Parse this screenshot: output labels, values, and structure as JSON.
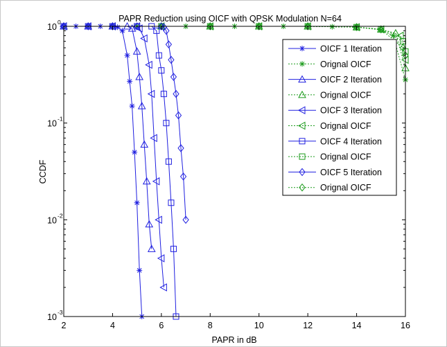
{
  "chart_data": {
    "type": "line",
    "title": "PAPR Reduction using OICF with QPSK Modulation N=64",
    "xlabel": "PAPR in dB",
    "ylabel": "CCDF",
    "xlim": [
      2,
      16
    ],
    "ylim": [
      0.001,
      1
    ],
    "yscale": "log",
    "xticks": [
      "2",
      "4",
      "6",
      "8",
      "10",
      "12",
      "14",
      "16"
    ],
    "yticks": [
      {
        "value": 1,
        "base": "10",
        "exp": "0"
      },
      {
        "value": 0.1,
        "base": "10",
        "exp": "-1"
      },
      {
        "value": 0.01,
        "base": "10",
        "exp": "-2"
      },
      {
        "value": 0.001,
        "base": "10",
        "exp": "-3"
      }
    ],
    "grid": false,
    "legend_position": "top-right",
    "colors": {
      "reduced": "#1f1fe0",
      "original": "#1a9a1a"
    },
    "series": [
      {
        "name": "OICF 1 Iteration",
        "style": "solid",
        "marker": "star",
        "x": [
          2.0,
          2.5,
          3.0,
          3.5,
          4.0,
          4.2,
          4.4,
          4.6,
          4.7,
          4.8,
          4.9,
          5.0,
          5.1,
          5.2
        ],
        "y": [
          1,
          1,
          1,
          1,
          1,
          0.98,
          0.9,
          0.5,
          0.27,
          0.15,
          0.05,
          0.015,
          0.003,
          0.001
        ]
      },
      {
        "name": "Orignal OICF",
        "style": "dotted",
        "marker": "star",
        "x": [
          2.0,
          3.0,
          4.0,
          5.0,
          6.0,
          7.0,
          8.0,
          9.0,
          10.0,
          11.0,
          12.0,
          13.0,
          14.0,
          15.0,
          15.5,
          16.0
        ],
        "y": [
          1,
          1,
          1,
          1,
          1,
          1,
          1,
          1,
          1,
          1,
          1,
          0.99,
          0.98,
          0.92,
          0.8,
          0.28
        ]
      },
      {
        "name": "OICF 2 Iteration",
        "style": "solid",
        "marker": "triangle-up",
        "x": [
          2.0,
          3.0,
          4.0,
          4.6,
          4.8,
          5.0,
          5.1,
          5.2,
          5.3,
          5.4,
          5.5,
          5.6
        ],
        "y": [
          1,
          1,
          1,
          1,
          0.95,
          0.55,
          0.3,
          0.15,
          0.06,
          0.025,
          0.009,
          0.005
        ]
      },
      {
        "name": "Orignal OICF",
        "style": "dotted",
        "marker": "triangle-up",
        "x": [
          2.0,
          4.0,
          6.0,
          8.0,
          10.0,
          12.0,
          14.0,
          15.0,
          15.6,
          16.0
        ],
        "y": [
          1,
          1,
          1,
          1,
          1,
          1,
          0.98,
          0.93,
          0.85,
          0.37
        ]
      },
      {
        "name": "OICF 3 Iteration",
        "style": "solid",
        "marker": "triangle-left",
        "x": [
          2.0,
          3.0,
          4.0,
          5.0,
          5.1,
          5.3,
          5.5,
          5.6,
          5.7,
          5.8,
          5.9,
          6.0,
          6.1
        ],
        "y": [
          1,
          1,
          1,
          1,
          0.95,
          0.75,
          0.4,
          0.2,
          0.07,
          0.025,
          0.01,
          0.004,
          0.002
        ]
      },
      {
        "name": "Orignal OICF",
        "style": "dotted",
        "marker": "triangle-left",
        "x": [
          2.0,
          4.0,
          6.0,
          8.0,
          10.0,
          12.0,
          14.0,
          15.0,
          15.8,
          16.0
        ],
        "y": [
          1,
          1,
          1,
          1,
          1,
          1,
          0.98,
          0.93,
          0.8,
          0.45
        ]
      },
      {
        "name": "OICF 4 Iteration",
        "style": "solid",
        "marker": "square",
        "x": [
          2.0,
          3.0,
          4.0,
          5.0,
          5.6,
          5.8,
          5.9,
          6.0,
          6.1,
          6.2,
          6.3,
          6.4,
          6.5,
          6.6
        ],
        "y": [
          1,
          1,
          1,
          1,
          1,
          0.9,
          0.5,
          0.35,
          0.2,
          0.1,
          0.04,
          0.015,
          0.005,
          0.001
        ]
      },
      {
        "name": "Orignal OICF",
        "style": "dotted",
        "marker": "square",
        "x": [
          2.0,
          4.0,
          6.0,
          8.0,
          10.0,
          12.0,
          14.0,
          15.0,
          15.9,
          16.0
        ],
        "y": [
          1,
          1,
          1,
          1,
          1,
          1,
          0.98,
          0.93,
          0.7,
          0.55
        ]
      },
      {
        "name": "OICF 5 Iteration",
        "style": "solid",
        "marker": "diamond",
        "x": [
          2.0,
          3.0,
          4.0,
          5.0,
          6.0,
          6.1,
          6.2,
          6.3,
          6.4,
          6.5,
          6.6,
          6.7,
          6.8,
          6.9,
          7.0
        ],
        "y": [
          1,
          1,
          1,
          1,
          1,
          0.98,
          0.9,
          0.65,
          0.45,
          0.3,
          0.2,
          0.12,
          0.055,
          0.028,
          0.01
        ]
      },
      {
        "name": "Orignal OICF",
        "style": "dotted",
        "marker": "diamond",
        "x": [
          2.0,
          4.0,
          6.0,
          8.0,
          10.0,
          12.0,
          14.0,
          15.0,
          15.9,
          16.0
        ],
        "y": [
          1,
          1,
          1,
          1,
          1,
          1,
          0.98,
          0.93,
          0.6,
          0.5
        ]
      }
    ]
  }
}
